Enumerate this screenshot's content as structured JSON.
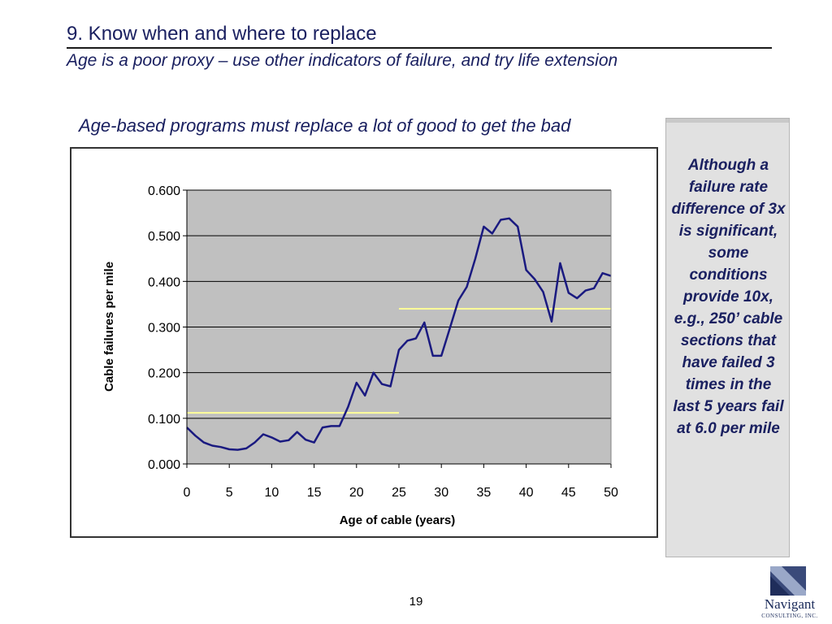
{
  "slide": {
    "title": "9. Know when and where to replace",
    "subtitle": "Age is a poor proxy – use other indicators of failure, and try life extension",
    "chart_caption": "Age-based programs must replace a lot of good to get the bad",
    "callout": "Although a failure rate difference of 3x is significant, some conditions provide 10x, e.g., 250’ cable sections that have failed 3 times in the last 5 years fail at 6.0 per mile",
    "page_number": "19",
    "logo": {
      "name": "Navigant",
      "tagline": "CONSULTING, INC."
    }
  },
  "colors": {
    "title": "#1a2060",
    "series": "#1a1a80",
    "plot_area": "#c0c0c0",
    "reference_lines": "#ffff99",
    "callout_bg": "#e1e1e1"
  },
  "chart_data": {
    "type": "line",
    "xlabel": "Age of cable (years)",
    "ylabel": "Cable failures per mile",
    "xlim": [
      0,
      50
    ],
    "ylim": [
      0,
      0.6
    ],
    "x_ticks": [
      "0",
      "5",
      "10",
      "15",
      "20",
      "25",
      "30",
      "35",
      "40",
      "45",
      "50"
    ],
    "y_ticks": [
      "0.000",
      "0.100",
      "0.200",
      "0.300",
      "0.400",
      "0.500",
      "0.600"
    ],
    "grid": "horizontal",
    "series": [
      {
        "x": [
          0,
          1,
          2,
          3,
          4,
          5,
          6,
          7,
          8,
          9,
          10,
          11,
          12,
          13,
          14,
          15,
          16,
          17,
          18,
          19,
          20,
          21,
          22,
          23,
          24,
          25,
          26,
          27,
          28,
          29,
          30,
          31,
          32,
          33,
          34,
          35,
          36,
          37,
          38,
          39,
          40,
          41,
          42,
          43,
          44,
          45,
          46,
          47,
          48,
          49,
          50
        ],
        "y": [
          0.08,
          0.062,
          0.047,
          0.04,
          0.037,
          0.032,
          0.031,
          0.034,
          0.047,
          0.065,
          0.058,
          0.049,
          0.052,
          0.07,
          0.053,
          0.047,
          0.08,
          0.083,
          0.083,
          0.125,
          0.178,
          0.15,
          0.2,
          0.175,
          0.17,
          0.25,
          0.27,
          0.275,
          0.31,
          0.237,
          0.237,
          0.297,
          0.358,
          0.388,
          0.45,
          0.52,
          0.505,
          0.535,
          0.538,
          0.52,
          0.425,
          0.405,
          0.377,
          0.312,
          0.44,
          0.375,
          0.363,
          0.38,
          0.385,
          0.418,
          0.412
        ]
      }
    ],
    "reference_lines": [
      {
        "x": [
          0,
          25
        ],
        "y": 0.112
      },
      {
        "x": [
          25,
          50
        ],
        "y": 0.34
      }
    ]
  }
}
